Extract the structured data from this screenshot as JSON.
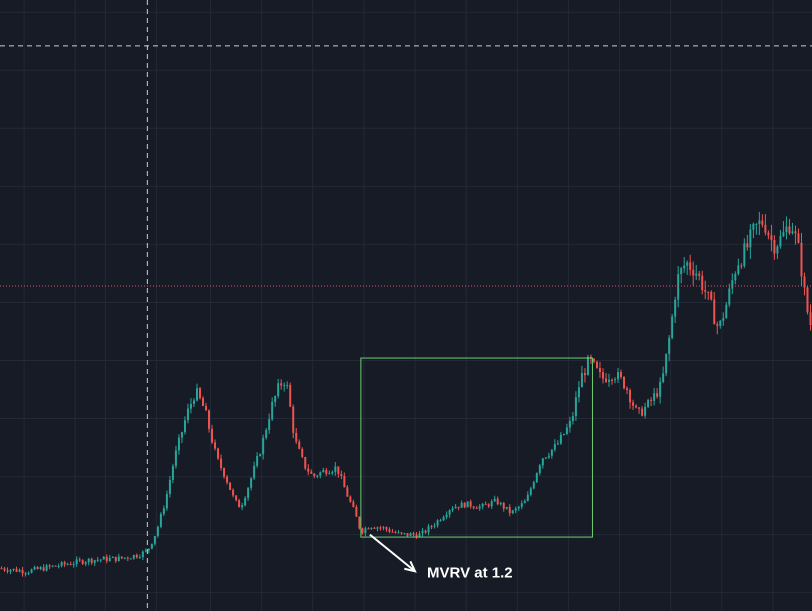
{
  "chart_data": {
    "type": "candlestick",
    "title": "",
    "xlabel": "",
    "ylabel": "",
    "grid": true,
    "colors": {
      "background": "#161b26",
      "grid": "#232936",
      "up": "#26a69a",
      "down": "#ef5350",
      "crosshair": "#c9ccd3",
      "price_line": "#e0526f",
      "box": "#6fcf73",
      "annotation": "#ffffff"
    },
    "ylim": [
      0,
      100
    ],
    "xlim": [
      0,
      270
    ],
    "crosshair": {
      "x": 49,
      "y": 92.5
    },
    "price_line": 53.2,
    "annotation": {
      "text": "MVRV at 1.2",
      "arrow_from": [
        123,
        12.5
      ],
      "arrow_to": [
        138,
        6.5
      ],
      "text_at": [
        142,
        5.5
      ]
    },
    "highlight_box": {
      "x0": 120,
      "x1": 197,
      "y0": 12.1,
      "y1": 41.4
    },
    "anchors": [
      [
        0,
        7
      ],
      [
        9,
        6.5
      ],
      [
        20,
        7.5
      ],
      [
        29,
        8.3
      ],
      [
        35,
        8.5
      ],
      [
        40,
        8.6
      ],
      [
        46,
        9.2
      ],
      [
        49,
        9.8
      ],
      [
        52,
        13
      ],
      [
        55,
        18
      ],
      [
        58,
        25
      ],
      [
        62,
        32
      ],
      [
        65,
        36
      ],
      [
        68,
        33
      ],
      [
        70,
        29
      ],
      [
        72,
        25
      ],
      [
        75,
        22
      ],
      [
        78,
        18
      ],
      [
        80,
        17
      ],
      [
        83,
        21
      ],
      [
        87,
        27
      ],
      [
        90,
        33
      ],
      [
        93,
        37
      ],
      [
        95,
        38
      ],
      [
        96,
        35
      ],
      [
        98,
        28
      ],
      [
        101,
        24
      ],
      [
        104,
        22
      ],
      [
        108,
        23
      ],
      [
        112,
        23.5
      ],
      [
        115,
        19.5
      ],
      [
        118,
        16
      ],
      [
        120,
        13
      ],
      [
        123,
        14
      ],
      [
        128,
        13.5
      ],
      [
        133,
        12.5
      ],
      [
        140,
        12.5
      ],
      [
        145,
        14.5
      ],
      [
        150,
        17
      ],
      [
        155,
        17.5
      ],
      [
        160,
        17
      ],
      [
        165,
        18
      ],
      [
        170,
        16
      ],
      [
        175,
        18
      ],
      [
        180,
        25
      ],
      [
        185,
        27
      ],
      [
        190,
        31
      ],
      [
        193,
        38
      ],
      [
        196,
        41
      ],
      [
        200,
        38
      ],
      [
        204,
        39
      ],
      [
        208,
        37
      ],
      [
        212,
        32
      ],
      [
        216,
        34
      ],
      [
        220,
        37
      ],
      [
        223,
        46
      ],
      [
        225,
        54
      ],
      [
        228,
        57
      ],
      [
        231,
        56
      ],
      [
        234,
        53
      ],
      [
        237,
        49
      ],
      [
        239,
        46
      ],
      [
        242,
        51
      ],
      [
        245,
        57
      ],
      [
        248,
        59
      ],
      [
        251,
        62.5
      ],
      [
        254,
        64
      ],
      [
        257,
        60
      ],
      [
        260,
        61
      ],
      [
        263,
        64
      ],
      [
        266,
        58
      ],
      [
        268,
        50
      ],
      [
        270,
        46
      ]
    ]
  }
}
